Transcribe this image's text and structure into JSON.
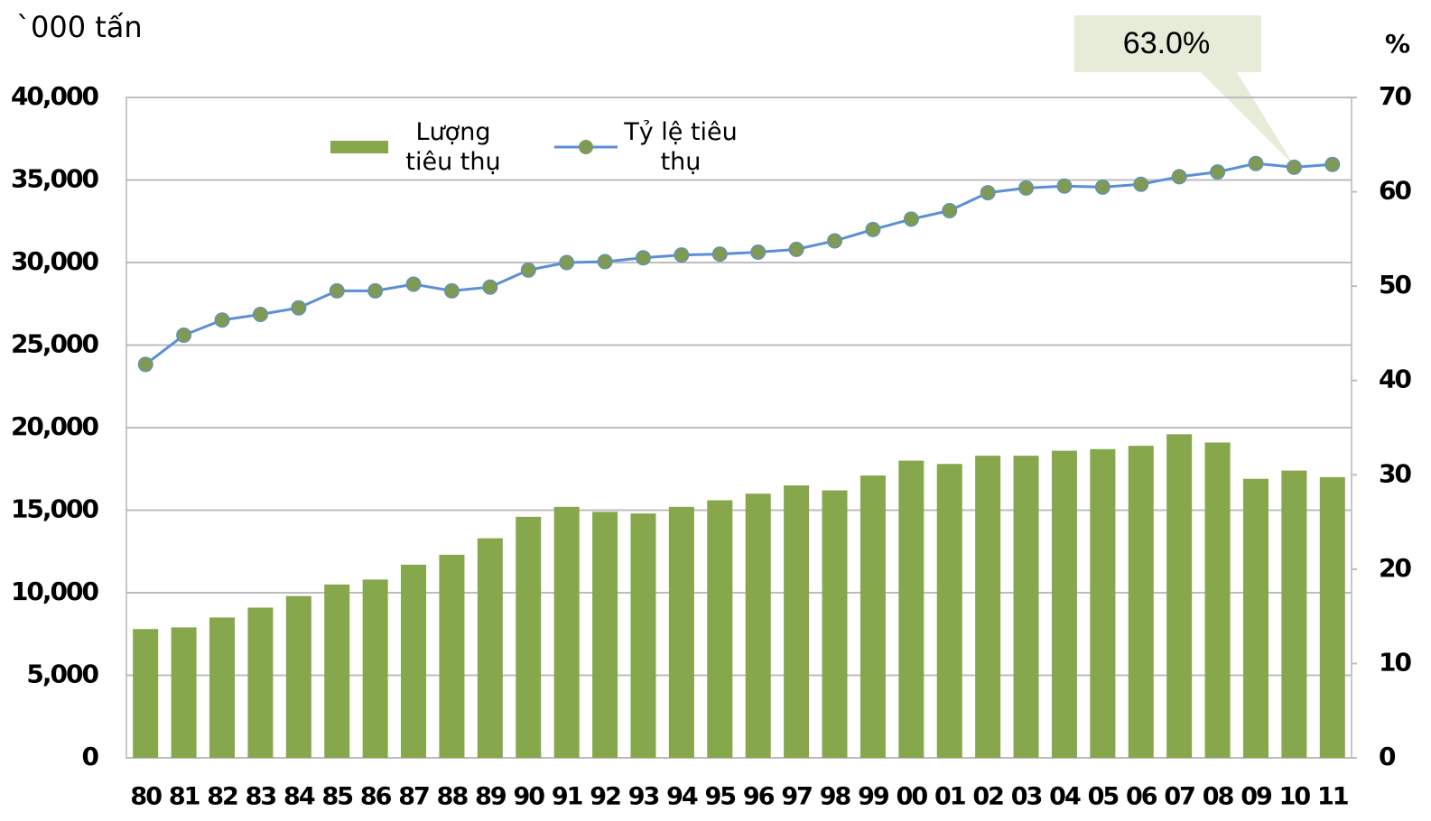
{
  "chart_data": {
    "type": "bar_line",
    "y_label": "`000 tấn",
    "y2_label": "%",
    "annotation": "63.0%",
    "categories": [
      "80",
      "81",
      "82",
      "83",
      "84",
      "85",
      "86",
      "87",
      "88",
      "89",
      "90",
      "91",
      "92",
      "93",
      "94",
      "95",
      "96",
      "97",
      "98",
      "99",
      "00",
      "01",
      "02",
      "03",
      "04",
      "05",
      "06",
      "07",
      "08",
      "09",
      "10",
      "11"
    ],
    "series": [
      {
        "name": "Lượng tiêu thụ",
        "type": "bar",
        "color": "#86a74b",
        "values": [
          7800,
          7900,
          8500,
          9100,
          9800,
          10500,
          10800,
          11700,
          12300,
          13300,
          14600,
          15200,
          14900,
          14800,
          15200,
          15600,
          16000,
          16500,
          16200,
          17100,
          18000,
          17800,
          18300,
          18300,
          18600,
          18700,
          18900,
          19600,
          19100,
          16900,
          17400,
          17000
        ]
      },
      {
        "name": "Tỷ lệ tiêu thụ",
        "type": "line",
        "axis": "y2",
        "color": "#5b8fd6",
        "marker_color": "#7f9a55",
        "values": [
          41.7,
          44.8,
          46.4,
          47.0,
          47.7,
          49.5,
          49.5,
          50.2,
          49.5,
          49.9,
          51.7,
          52.5,
          52.6,
          53.0,
          53.3,
          53.4,
          53.6,
          53.9,
          54.8,
          56.0,
          57.1,
          58.0,
          59.9,
          60.4,
          60.6,
          60.5,
          60.8,
          61.6,
          62.1,
          63.0,
          62.6,
          62.9
        ]
      }
    ],
    "ylim": [
      0,
      40000
    ],
    "yticks": [
      0,
      {
        "value": 5000,
        "label": "5,000"
      },
      {
        "value": 10000,
        "label": "10,000"
      },
      {
        "value": 15000,
        "label": "15,000"
      },
      {
        "value": 20000,
        "label": "20,000"
      },
      {
        "value": 25000,
        "label": "25,000"
      },
      {
        "value": 30000,
        "label": "30,000"
      },
      {
        "value": 35000,
        "label": "35,000"
      },
      {
        "value": 40000,
        "label": "40,000"
      }
    ],
    "y2lim": [
      0,
      70
    ],
    "y2ticks": [
      0,
      10,
      20,
      30,
      40,
      50,
      60,
      70
    ],
    "grid": true
  }
}
